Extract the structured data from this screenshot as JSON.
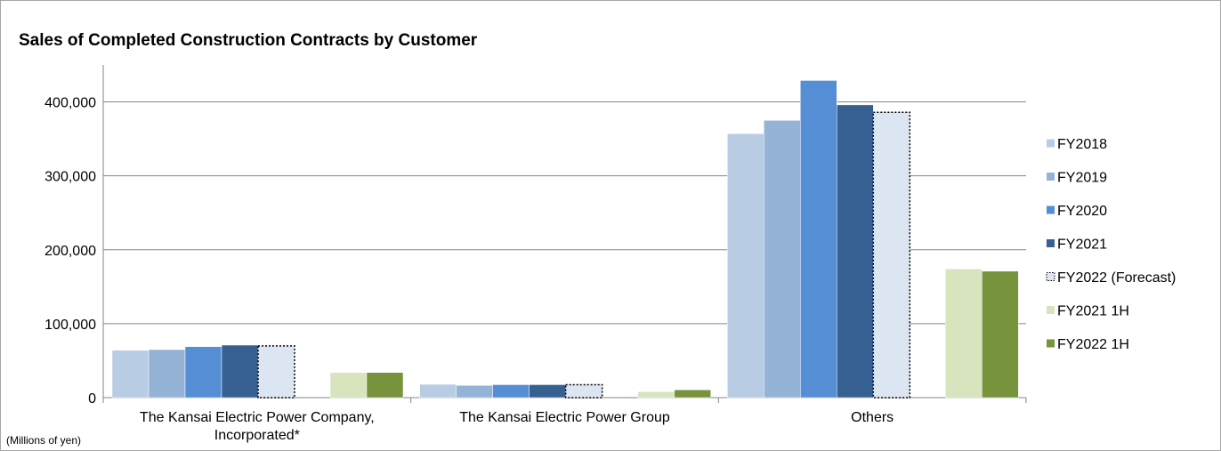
{
  "chart_data": {
    "type": "bar",
    "title": "Sales of Completed Construction Contracts by Customer",
    "units_note": "(Millions of yen)",
    "categories": [
      [
        "The Kansai Electric Power Company,",
        "Incorporated*"
      ],
      [
        "The Kansai Electric Power Group"
      ],
      [
        "Others"
      ]
    ],
    "ylim": [
      0,
      450000
    ],
    "yticks": [
      0,
      100000,
      200000,
      300000,
      400000
    ],
    "ytick_labels": [
      "0",
      "100,000",
      "200,000",
      "300,000",
      "400,000"
    ],
    "grid": true,
    "legend_position": "right",
    "series": [
      {
        "name": "FY2018",
        "color": "#b8cce4",
        "style": "solid",
        "values": [
          64000,
          18000,
          357000
        ]
      },
      {
        "name": "FY2019",
        "color": "#95b3d7",
        "style": "solid",
        "values": [
          65000,
          16500,
          375000
        ]
      },
      {
        "name": "FY2020",
        "color": "#558ed5",
        "style": "solid",
        "values": [
          69000,
          17500,
          429000
        ]
      },
      {
        "name": "FY2021",
        "color": "#366092",
        "style": "solid",
        "values": [
          71000,
          17500,
          396000
        ]
      },
      {
        "name": "FY2022 (Forecast)",
        "color": "#dce6f2",
        "style": "dotted",
        "values": [
          70000,
          17500,
          386000
        ]
      },
      {
        "name": "FY2021 1H",
        "color": "#d7e4bd",
        "style": "solid",
        "values": [
          34000,
          8000,
          174000
        ]
      },
      {
        "name": "FY2022 1H",
        "color": "#77933c",
        "style": "solid",
        "values": [
          34000,
          10500,
          171000
        ]
      }
    ]
  }
}
